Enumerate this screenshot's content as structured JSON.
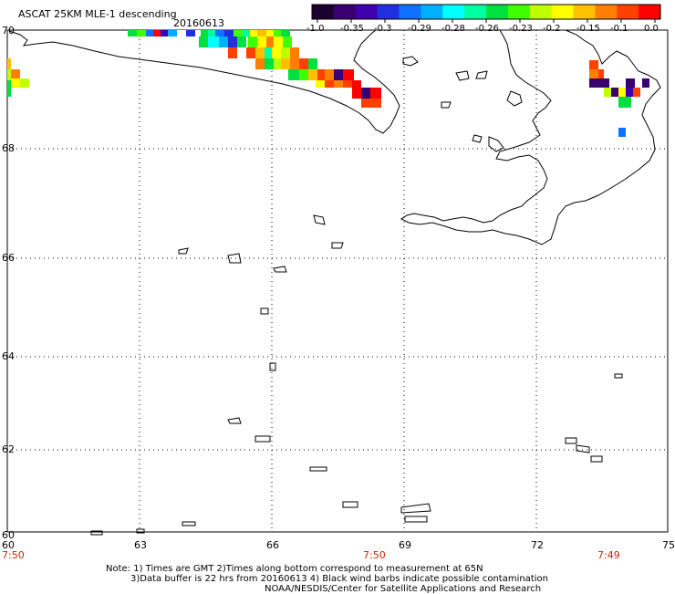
{
  "header": {
    "title": "ASCAT 25KM MLE-1 descending",
    "date": "20160613"
  },
  "colorbar": {
    "colors": [
      "#1a0030",
      "#3a0070",
      "#4000b0",
      "#2030e0",
      "#1070ff",
      "#00b0ff",
      "#00ffff",
      "#00ffa0",
      "#00e040",
      "#40ff00",
      "#c0ff00",
      "#ffff00",
      "#ffc000",
      "#ff8000",
      "#ff4000",
      "#ff0000"
    ],
    "tick_labels": [
      "-1.0",
      "-0.35",
      "-0.3",
      "-0.29",
      "-0.28",
      "-0.26",
      "-0.23",
      "-0.2",
      "-0.15",
      "-0.1",
      "0.0"
    ]
  },
  "axes": {
    "lat_labels": [
      "70",
      "68",
      "66",
      "64",
      "62",
      "60"
    ],
    "lon_labels": [
      "60",
      "63",
      "66",
      "69",
      "72",
      "75"
    ],
    "time_labels": [
      "7:50",
      "7:50",
      "7:49"
    ],
    "lat_range": [
      60,
      70
    ],
    "lon_range": [
      60,
      75
    ]
  },
  "notes": {
    "line1": "Note: 1) Times are GMT 2)Times along bottom correspond to measurement at 65N",
    "line2": "3)Data buffer is 22 hrs from 20160613 4) Black wind barbs indicate possible contamination",
    "line3": "NOAA/NESDIS/Center for Satellite Applications and Research"
  }
}
